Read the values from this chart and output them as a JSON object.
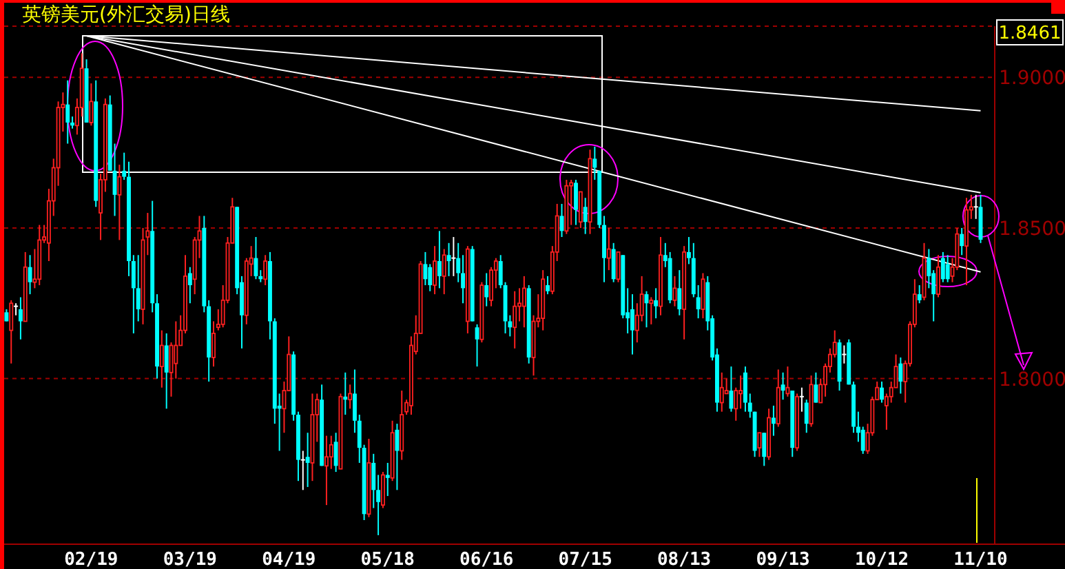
{
  "chart_data": {
    "type": "candlestick",
    "title": "英镑美元(外汇交易)日线",
    "categories": [
      null,
      null,
      null,
      null,
      null,
      null,
      null,
      null,
      null,
      null,
      null,
      null,
      null,
      null,
      null,
      null,
      null,
      null,
      "02/19",
      null,
      null,
      null,
      null,
      null,
      null,
      null,
      null,
      null,
      null,
      null,
      null,
      null,
      null,
      null,
      null,
      null,
      null,
      null,
      null,
      "03/19",
      null,
      null,
      null,
      null,
      null,
      null,
      null,
      null,
      null,
      null,
      null,
      null,
      null,
      null,
      null,
      null,
      null,
      null,
      null,
      null,
      "04/19",
      null,
      null,
      null,
      null,
      null,
      null,
      null,
      null,
      null,
      null,
      null,
      null,
      null,
      null,
      null,
      null,
      null,
      null,
      null,
      null,
      "05/18",
      null,
      null,
      null,
      null,
      null,
      null,
      null,
      null,
      null,
      null,
      null,
      null,
      null,
      null,
      null,
      null,
      null,
      null,
      null,
      null,
      "06/16",
      null,
      null,
      null,
      null,
      null,
      null,
      null,
      null,
      null,
      null,
      null,
      null,
      null,
      null,
      null,
      null,
      null,
      null,
      null,
      null,
      "07/15",
      null,
      null,
      null,
      null,
      null,
      null,
      null,
      null,
      null,
      null,
      null,
      null,
      null,
      null,
      null,
      null,
      null,
      null,
      null,
      null,
      "08/13",
      null,
      null,
      null,
      null,
      null,
      null,
      null,
      null,
      null,
      null,
      null,
      null,
      null,
      null,
      null,
      null,
      null,
      null,
      null,
      null,
      "09/13",
      null,
      null,
      null,
      null,
      null,
      null,
      null,
      null,
      null,
      null,
      null,
      null,
      null,
      null,
      null,
      null,
      null,
      null,
      null,
      null,
      "10/12",
      null,
      null,
      null,
      null,
      null,
      null,
      null,
      null,
      null,
      null,
      null,
      null,
      null,
      null,
      null,
      null,
      null,
      null,
      null,
      null,
      "11/10"
    ],
    "ohlc": [
      [
        1.822,
        1.823,
        1.819,
        1.819
      ],
      [
        1.816,
        1.826,
        1.805,
        1.825
      ],
      [
        1.824,
        1.825,
        1.821,
        1.824
      ],
      [
        1.823,
        1.827,
        1.813,
        1.819
      ],
      [
        1.819,
        1.842,
        1.819,
        1.837
      ],
      [
        1.837,
        1.841,
        1.828,
        1.832
      ],
      [
        1.832,
        1.843,
        1.83,
        1.833
      ],
      [
        1.833,
        1.851,
        1.831,
        1.846
      ],
      [
        1.846,
        1.851,
        1.845,
        1.847
      ],
      [
        1.845,
        1.863,
        1.839,
        1.859
      ],
      [
        1.859,
        1.873,
        1.854,
        1.87
      ],
      [
        1.87,
        1.892,
        1.864,
        1.89
      ],
      [
        1.89,
        1.895,
        1.882,
        1.891
      ],
      [
        1.891,
        1.899,
        1.878,
        1.885
      ],
      [
        1.885,
        1.887,
        1.883,
        1.884
      ],
      [
        1.884,
        1.893,
        1.881,
        1.89
      ],
      [
        1.89,
        1.908,
        1.887,
        1.903
      ],
      [
        1.903,
        1.906,
        1.885,
        1.885
      ],
      [
        1.885,
        1.898,
        1.884,
        1.892
      ],
      [
        1.892,
        1.899,
        1.857,
        1.859
      ],
      [
        1.855,
        1.868,
        1.846,
        1.866
      ],
      [
        1.866,
        1.893,
        1.862,
        1.891
      ],
      [
        1.891,
        1.894,
        1.869,
        1.869
      ],
      [
        1.869,
        1.878,
        1.854,
        1.861
      ],
      [
        1.861,
        1.871,
        1.846,
        1.867
      ],
      [
        1.869,
        1.875,
        1.866,
        1.867
      ],
      [
        1.867,
        1.872,
        1.834,
        1.839
      ],
      [
        1.839,
        1.841,
        1.815,
        1.83
      ],
      [
        1.83,
        1.841,
        1.819,
        1.823
      ],
      [
        1.823,
        1.85,
        1.818,
        1.846
      ],
      [
        1.847,
        1.855,
        1.841,
        1.849
      ],
      [
        1.849,
        1.859,
        1.822,
        1.825
      ],
      [
        1.825,
        1.828,
        1.8,
        1.804
      ],
      [
        1.804,
        1.816,
        1.797,
        1.811
      ],
      [
        1.811,
        1.815,
        1.79,
        1.802
      ],
      [
        1.802,
        1.812,
        1.794,
        1.811
      ],
      [
        1.805,
        1.819,
        1.8,
        1.811
      ],
      [
        1.811,
        1.821,
        1.811,
        1.816
      ],
      [
        1.816,
        1.841,
        1.815,
        1.834
      ],
      [
        1.835,
        1.837,
        1.825,
        1.831
      ],
      [
        1.833,
        1.847,
        1.828,
        1.846
      ],
      [
        1.846,
        1.854,
        1.84,
        1.849
      ],
      [
        1.85,
        1.854,
        1.822,
        1.824
      ],
      [
        1.824,
        1.826,
        1.799,
        1.807
      ],
      [
        1.807,
        1.819,
        1.804,
        1.815
      ],
      [
        1.817,
        1.823,
        1.816,
        1.818
      ],
      [
        1.818,
        1.831,
        1.817,
        1.826
      ],
      [
        1.826,
        1.847,
        1.825,
        1.845
      ],
      [
        1.845,
        1.86,
        1.845,
        1.857
      ],
      [
        1.857,
        1.857,
        1.828,
        1.83
      ],
      [
        1.832,
        1.834,
        1.81,
        1.821
      ],
      [
        1.821,
        1.84,
        1.818,
        1.839
      ],
      [
        1.838,
        1.844,
        1.834,
        1.84
      ],
      [
        1.84,
        1.847,
        1.833,
        1.834
      ],
      [
        1.834,
        1.836,
        1.832,
        1.833
      ],
      [
        1.833,
        1.841,
        1.831,
        1.839
      ],
      [
        1.839,
        1.842,
        1.813,
        1.819
      ],
      [
        1.819,
        1.82,
        1.785,
        1.79
      ],
      [
        1.791,
        1.795,
        1.776,
        1.79
      ],
      [
        1.79,
        1.799,
        1.782,
        1.796
      ],
      [
        1.796,
        1.814,
        1.796,
        1.808
      ],
      [
        1.808,
        1.809,
        1.786,
        1.788
      ],
      [
        1.788,
        1.789,
        1.766,
        1.773
      ],
      [
        1.773,
        1.776,
        1.763,
        1.773
      ],
      [
        1.774,
        1.782,
        1.764,
        1.772
      ],
      [
        1.772,
        1.795,
        1.766,
        1.788
      ],
      [
        1.788,
        1.795,
        1.779,
        1.793
      ],
      [
        1.793,
        1.798,
        1.771,
        1.771
      ],
      [
        1.771,
        1.781,
        1.758,
        1.774
      ],
      [
        1.774,
        1.781,
        1.77,
        1.778
      ],
      [
        1.779,
        1.782,
        1.769,
        1.771
      ],
      [
        1.77,
        1.795,
        1.77,
        1.794
      ],
      [
        1.794,
        1.802,
        1.788,
        1.793
      ],
      [
        1.793,
        1.798,
        1.79,
        1.795
      ],
      [
        1.795,
        1.803,
        1.782,
        1.786
      ],
      [
        1.786,
        1.788,
        1.772,
        1.777
      ],
      [
        1.777,
        1.778,
        1.753,
        1.755
      ],
      [
        1.755,
        1.78,
        1.754,
        1.772
      ],
      [
        1.772,
        1.775,
        1.757,
        1.763
      ],
      [
        1.763,
        1.768,
        1.748,
        1.759
      ],
      [
        1.758,
        1.769,
        1.757,
        1.768
      ],
      [
        1.768,
        1.772,
        1.761,
        1.767
      ],
      [
        1.767,
        1.786,
        1.766,
        1.782
      ],
      [
        1.783,
        1.785,
        1.763,
        1.776
      ],
      [
        1.776,
        1.796,
        1.773,
        1.788
      ],
      [
        1.789,
        1.793,
        1.788,
        1.792
      ],
      [
        1.791,
        1.814,
        1.788,
        1.811
      ],
      [
        1.809,
        1.821,
        1.808,
        1.815
      ],
      [
        1.815,
        1.839,
        1.815,
        1.838
      ],
      [
        1.838,
        1.842,
        1.831,
        1.833
      ],
      [
        1.837,
        1.838,
        1.829,
        1.831
      ],
      [
        1.831,
        1.844,
        1.828,
        1.839
      ],
      [
        1.839,
        1.849,
        1.83,
        1.834
      ],
      [
        1.834,
        1.843,
        1.828,
        1.841
      ],
      [
        1.841,
        1.845,
        1.834,
        1.839
      ],
      [
        1.84,
        1.847,
        1.834,
        1.84
      ],
      [
        1.84,
        1.845,
        1.832,
        1.835
      ],
      [
        1.835,
        1.841,
        1.825,
        1.83
      ],
      [
        1.819,
        1.844,
        1.815,
        1.843
      ],
      [
        1.843,
        1.844,
        1.819,
        1.819
      ],
      [
        1.817,
        1.818,
        1.804,
        1.813
      ],
      [
        1.813,
        1.832,
        1.812,
        1.831
      ],
      [
        1.831,
        1.835,
        1.824,
        1.827
      ],
      [
        1.826,
        1.837,
        1.824,
        1.836
      ],
      [
        1.836,
        1.84,
        1.83,
        1.839
      ],
      [
        1.839,
        1.841,
        1.83,
        1.831
      ],
      [
        1.831,
        1.832,
        1.815,
        1.819
      ],
      [
        1.819,
        1.821,
        1.814,
        1.817
      ],
      [
        1.817,
        1.829,
        1.81,
        1.824
      ],
      [
        1.824,
        1.83,
        1.819,
        1.825
      ],
      [
        1.824,
        1.834,
        1.817,
        1.83
      ],
      [
        1.83,
        1.831,
        1.805,
        1.807
      ],
      [
        1.807,
        1.821,
        1.801,
        1.819
      ],
      [
        1.819,
        1.828,
        1.817,
        1.82
      ],
      [
        1.82,
        1.836,
        1.816,
        1.833
      ],
      [
        1.831,
        1.834,
        1.828,
        1.829
      ],
      [
        1.829,
        1.844,
        1.828,
        1.842
      ],
      [
        1.842,
        1.858,
        1.839,
        1.854
      ],
      [
        1.854,
        1.858,
        1.847,
        1.849
      ],
      [
        1.849,
        1.866,
        1.848,
        1.864
      ],
      [
        1.864,
        1.866,
        1.851,
        1.865
      ],
      [
        1.865,
        1.866,
        1.851,
        1.856
      ],
      [
        1.852,
        1.862,
        1.85,
        1.862
      ],
      [
        1.857,
        1.86,
        1.848,
        1.852
      ],
      [
        1.852,
        1.876,
        1.848,
        1.873
      ],
      [
        1.873,
        1.877,
        1.866,
        1.87
      ],
      [
        1.869,
        1.869,
        1.85,
        1.851
      ],
      [
        1.851,
        1.854,
        1.832,
        1.84
      ],
      [
        1.84,
        1.85,
        1.836,
        1.843
      ],
      [
        1.843,
        1.845,
        1.832,
        1.833
      ],
      [
        1.833,
        1.842,
        1.832,
        1.842
      ],
      [
        1.841,
        1.841,
        1.82,
        1.821
      ],
      [
        1.822,
        1.83,
        1.815,
        1.82
      ],
      [
        1.823,
        1.828,
        1.808,
        1.816
      ],
      [
        1.816,
        1.825,
        1.812,
        1.821
      ],
      [
        1.821,
        1.834,
        1.819,
        1.828
      ],
      [
        1.828,
        1.829,
        1.817,
        1.825
      ],
      [
        1.825,
        1.827,
        1.818,
        1.826
      ],
      [
        1.826,
        1.83,
        1.82,
        1.824
      ],
      [
        1.824,
        1.847,
        1.821,
        1.841
      ],
      [
        1.841,
        1.845,
        1.837,
        1.839
      ],
      [
        1.84,
        1.842,
        1.825,
        1.826
      ],
      [
        1.826,
        1.834,
        1.824,
        1.83
      ],
      [
        1.83,
        1.836,
        1.821,
        1.823
      ],
      [
        1.823,
        1.844,
        1.813,
        1.842
      ],
      [
        1.842,
        1.847,
        1.838,
        1.84
      ],
      [
        1.84,
        1.845,
        1.827,
        1.828
      ],
      [
        1.827,
        1.831,
        1.82,
        1.823
      ],
      [
        1.823,
        1.835,
        1.82,
        1.833
      ],
      [
        1.832,
        1.834,
        1.816,
        1.819
      ],
      [
        1.82,
        1.821,
        1.806,
        1.807
      ],
      [
        1.808,
        1.81,
        1.789,
        1.792
      ],
      [
        1.792,
        1.802,
        1.789,
        1.797
      ],
      [
        1.795,
        1.8,
        1.795,
        1.796
      ],
      [
        1.796,
        1.804,
        1.789,
        1.79
      ],
      [
        1.79,
        1.797,
        1.786,
        1.796
      ],
      [
        1.795,
        1.801,
        1.79,
        1.796
      ],
      [
        1.802,
        1.804,
        1.789,
        1.792
      ],
      [
        1.792,
        1.795,
        1.787,
        1.789
      ],
      [
        1.789,
        1.789,
        1.774,
        1.776
      ],
      [
        1.777,
        1.782,
        1.774,
        1.782
      ],
      [
        1.782,
        1.782,
        1.771,
        1.774
      ],
      [
        1.774,
        1.79,
        1.773,
        1.787
      ],
      [
        1.787,
        1.791,
        1.781,
        1.785
      ],
      [
        1.785,
        1.803,
        1.784,
        1.797
      ],
      [
        1.798,
        1.802,
        1.793,
        1.796
      ],
      [
        1.795,
        1.804,
        1.794,
        1.797
      ],
      [
        1.796,
        1.796,
        1.774,
        1.777
      ],
      [
        1.777,
        1.795,
        1.776,
        1.794
      ],
      [
        1.794,
        1.797,
        1.789,
        1.794
      ],
      [
        1.792,
        1.793,
        1.782,
        1.785
      ],
      [
        1.785,
        1.801,
        1.784,
        1.798
      ],
      [
        1.798,
        1.802,
        1.792,
        1.792
      ],
      [
        1.792,
        1.8,
        1.792,
        1.798
      ],
      [
        1.798,
        1.805,
        1.794,
        1.804
      ],
      [
        1.804,
        1.81,
        1.802,
        1.808
      ],
      [
        1.808,
        1.816,
        1.807,
        1.812
      ],
      [
        1.812,
        1.813,
        1.796,
        1.799
      ],
      [
        1.808,
        1.811,
        1.805,
        1.808
      ],
      [
        1.812,
        1.813,
        1.798,
        1.798
      ],
      [
        1.798,
        1.799,
        1.782,
        1.784
      ],
      [
        1.784,
        1.789,
        1.779,
        1.782
      ],
      [
        1.783,
        1.784,
        1.775,
        1.776
      ],
      [
        1.776,
        1.785,
        1.775,
        1.782
      ],
      [
        1.782,
        1.794,
        1.781,
        1.793
      ],
      [
        1.793,
        1.799,
        1.793,
        1.797
      ],
      [
        1.797,
        1.799,
        1.792,
        1.793
      ],
      [
        1.791,
        1.795,
        1.783,
        1.794
      ],
      [
        1.794,
        1.799,
        1.792,
        1.797
      ],
      [
        1.797,
        1.808,
        1.797,
        1.804
      ],
      [
        1.805,
        1.807,
        1.795,
        1.799
      ],
      [
        1.799,
        1.806,
        1.792,
        1.805
      ],
      [
        1.805,
        1.819,
        1.804,
        1.818
      ],
      [
        1.818,
        1.833,
        1.817,
        1.828
      ],
      [
        1.828,
        1.831,
        1.825,
        1.826
      ],
      [
        1.827,
        1.845,
        1.826,
        1.84
      ],
      [
        1.84,
        1.843,
        1.83,
        1.834
      ],
      [
        1.835,
        1.836,
        1.819,
        1.828
      ],
      [
        1.828,
        1.841,
        1.827,
        1.837
      ],
      [
        1.84,
        1.842,
        1.832,
        1.833
      ],
      [
        1.838,
        1.841,
        1.832,
        1.833
      ],
      [
        1.834,
        1.84,
        1.832,
        1.837
      ],
      [
        1.837,
        1.85,
        1.836,
        1.848
      ],
      [
        1.848,
        1.85,
        1.841,
        1.844
      ],
      [
        1.844,
        1.86,
        1.831,
        1.856
      ],
      [
        1.856,
        1.861,
        1.853,
        1.857
      ],
      [
        1.857,
        1.861,
        1.853,
        1.857
      ],
      [
        1.857,
        1.861,
        1.845,
        1.8461
      ]
    ],
    "series": [
      {
        "type": "line",
        "color": "#ffffff",
        "values": [
          null,
          null,
          null,
          null,
          null,
          null,
          null,
          null,
          null,
          null,
          null,
          null,
          null,
          null,
          null,
          null,
          null,
          1.9138,
          null,
          null,
          null,
          null,
          null,
          null,
          null,
          null,
          null,
          null,
          null,
          null,
          null,
          null,
          null,
          null,
          null,
          null,
          null,
          null,
          null,
          null,
          null,
          null,
          null,
          null,
          null,
          null,
          null,
          null,
          null,
          null,
          null,
          null,
          null,
          null,
          null,
          null,
          null,
          null,
          null,
          null,
          null,
          null,
          null,
          null,
          null,
          null,
          null,
          null,
          null,
          null,
          null,
          null,
          null,
          null,
          null,
          null,
          null,
          null,
          null,
          null,
          null,
          null,
          null,
          null,
          null,
          null,
          null,
          null,
          null,
          null,
          null,
          null,
          null,
          null,
          null,
          null,
          null,
          null,
          null,
          null,
          null,
          null,
          null,
          null,
          null,
          null,
          null,
          null,
          null,
          null,
          null,
          null,
          null,
          null,
          null,
          null,
          null,
          null,
          null,
          null,
          null,
          null,
          null,
          null,
          null,
          null,
          null,
          null,
          null,
          null,
          null,
          null,
          null,
          null,
          null,
          null,
          null,
          null,
          null,
          null,
          null,
          null,
          null,
          null,
          null,
          null,
          null,
          null,
          null,
          null,
          null,
          null,
          null,
          null,
          null,
          null,
          null,
          null,
          null,
          null,
          null,
          null,
          null,
          null,
          null,
          null,
          null,
          null,
          null,
          null,
          null,
          null,
          null,
          null,
          null,
          null,
          null,
          null,
          null,
          null,
          null,
          null,
          null,
          null,
          null,
          null,
          null,
          null,
          null,
          null,
          null,
          null,
          null,
          null,
          null,
          null,
          null,
          null,
          null,
          null,
          null,
          null,
          null,
          null,
          null,
          null,
          null,
          1.8889
        ]
      },
      {
        "type": "line",
        "color": "#ffffff",
        "values": [
          null,
          null,
          null,
          null,
          null,
          null,
          null,
          null,
          null,
          null,
          null,
          null,
          null,
          null,
          null,
          null,
          null,
          1.9138,
          null,
          null,
          null,
          null,
          null,
          null,
          null,
          null,
          null,
          null,
          null,
          null,
          null,
          null,
          null,
          null,
          null,
          null,
          null,
          null,
          null,
          null,
          null,
          null,
          null,
          null,
          null,
          null,
          null,
          null,
          null,
          null,
          null,
          null,
          null,
          null,
          null,
          null,
          null,
          null,
          null,
          null,
          null,
          null,
          null,
          null,
          null,
          null,
          null,
          null,
          null,
          null,
          null,
          null,
          null,
          null,
          null,
          null,
          null,
          null,
          null,
          null,
          null,
          null,
          null,
          null,
          null,
          null,
          null,
          null,
          null,
          null,
          null,
          null,
          null,
          null,
          null,
          null,
          null,
          null,
          null,
          null,
          null,
          null,
          null,
          null,
          null,
          null,
          null,
          null,
          null,
          null,
          null,
          null,
          null,
          null,
          null,
          null,
          null,
          null,
          null,
          null,
          null,
          null,
          null,
          null,
          null,
          null,
          null,
          null,
          null,
          null,
          null,
          null,
          null,
          null,
          null,
          null,
          null,
          null,
          null,
          null,
          null,
          null,
          null,
          null,
          null,
          null,
          null,
          null,
          null,
          null,
          null,
          null,
          null,
          null,
          null,
          null,
          null,
          null,
          null,
          null,
          null,
          null,
          null,
          null,
          null,
          null,
          null,
          null,
          null,
          null,
          null,
          null,
          null,
          null,
          null,
          null,
          null,
          null,
          null,
          null,
          null,
          null,
          null,
          null,
          null,
          null,
          null,
          null,
          null,
          null,
          null,
          null,
          null,
          null,
          null,
          null,
          null,
          null,
          null,
          null,
          null,
          null,
          null,
          null,
          null,
          null,
          null,
          1.8617
        ]
      },
      {
        "type": "line",
        "color": "#ffffff",
        "values": [
          null,
          null,
          null,
          null,
          null,
          null,
          null,
          null,
          null,
          null,
          null,
          null,
          null,
          null,
          null,
          null,
          null,
          1.9138,
          null,
          null,
          null,
          null,
          null,
          null,
          null,
          null,
          null,
          null,
          null,
          null,
          null,
          null,
          null,
          null,
          null,
          null,
          null,
          null,
          null,
          null,
          null,
          null,
          null,
          null,
          null,
          null,
          null,
          null,
          null,
          null,
          null,
          null,
          null,
          null,
          null,
          null,
          null,
          null,
          null,
          null,
          null,
          null,
          null,
          null,
          null,
          null,
          null,
          null,
          null,
          null,
          null,
          null,
          null,
          null,
          null,
          null,
          null,
          null,
          null,
          null,
          null,
          null,
          null,
          null,
          null,
          null,
          null,
          null,
          null,
          null,
          null,
          null,
          null,
          null,
          null,
          null,
          null,
          null,
          null,
          null,
          null,
          null,
          null,
          null,
          null,
          null,
          null,
          null,
          null,
          null,
          null,
          null,
          null,
          null,
          null,
          null,
          null,
          null,
          null,
          null,
          null,
          null,
          null,
          null,
          null,
          null,
          null,
          null,
          null,
          null,
          null,
          null,
          null,
          null,
          null,
          null,
          null,
          null,
          null,
          null,
          null,
          null,
          null,
          null,
          null,
          null,
          null,
          null,
          null,
          null,
          null,
          null,
          null,
          null,
          null,
          null,
          null,
          null,
          null,
          null,
          null,
          null,
          null,
          null,
          null,
          null,
          null,
          null,
          null,
          null,
          null,
          null,
          null,
          null,
          null,
          null,
          null,
          null,
          null,
          null,
          null,
          null,
          null,
          null,
          null,
          null,
          null,
          null,
          null,
          null,
          null,
          null,
          null,
          null,
          null,
          null,
          null,
          null,
          null,
          null,
          null,
          null,
          null,
          null,
          null,
          null,
          null,
          1.8354
        ]
      }
    ],
    "ylim": [
      1.745,
      1.917
    ],
    "yticks": [
      {
        "value": 1.8,
        "label": "1.8000"
      },
      {
        "value": 1.85,
        "label": "1.8500"
      },
      {
        "value": 1.9,
        "label": "1.9000"
      }
    ],
    "grid": "y",
    "annotations": [
      "1.8461"
    ]
  }
}
